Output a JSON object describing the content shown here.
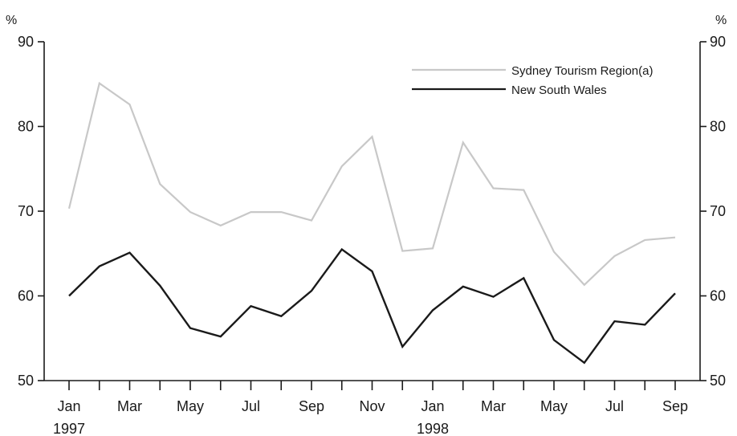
{
  "chart_data": {
    "type": "line",
    "title": "",
    "xlabel": "",
    "ylabel_left": "%",
    "ylabel_right": "%",
    "ylim": [
      50,
      90
    ],
    "yticks": [
      50,
      60,
      70,
      80,
      90
    ],
    "grid": false,
    "legend_position": "top-right",
    "x": [
      "Jan 1997",
      "Feb 1997",
      "Mar 1997",
      "Apr 1997",
      "May 1997",
      "Jun 1997",
      "Jul 1997",
      "Aug 1997",
      "Sep 1997",
      "Oct 1997",
      "Nov 1997",
      "Dec 1997",
      "Jan 1998",
      "Feb 1998",
      "Mar 1998",
      "Apr 1998",
      "May 1998",
      "Jun 1998",
      "Jul 1998",
      "Aug 1998",
      "Sep 1998"
    ],
    "x_tick_labels": [
      {
        "index": 0,
        "month": "Jan",
        "year": "1997"
      },
      {
        "index": 2,
        "month": "Mar",
        "year": ""
      },
      {
        "index": 4,
        "month": "May",
        "year": ""
      },
      {
        "index": 6,
        "month": "Jul",
        "year": ""
      },
      {
        "index": 8,
        "month": "Sep",
        "year": ""
      },
      {
        "index": 10,
        "month": "Nov",
        "year": ""
      },
      {
        "index": 12,
        "month": "Jan",
        "year": "1998"
      },
      {
        "index": 14,
        "month": "Mar",
        "year": ""
      },
      {
        "index": 16,
        "month": "May",
        "year": ""
      },
      {
        "index": 18,
        "month": "Jul",
        "year": ""
      },
      {
        "index": 20,
        "month": "Sep",
        "year": ""
      }
    ],
    "series": [
      {
        "name": "Sydney Tourism Region(a)",
        "color": "#c8c8c8",
        "values": [
          70.3,
          85.1,
          82.6,
          73.2,
          69.9,
          68.3,
          69.9,
          69.9,
          68.9,
          75.3,
          78.8,
          65.3,
          65.6,
          78.1,
          72.7,
          72.5,
          65.2,
          61.3,
          64.7,
          66.6,
          66.9
        ]
      },
      {
        "name": "New South Wales",
        "color": "#1a1a1a",
        "values": [
          60.0,
          63.5,
          65.1,
          61.2,
          56.2,
          55.2,
          58.8,
          57.6,
          60.6,
          65.5,
          62.9,
          54.0,
          58.3,
          61.1,
          59.9,
          62.1,
          54.8,
          52.1,
          57.0,
          56.6,
          60.3
        ]
      }
    ]
  }
}
